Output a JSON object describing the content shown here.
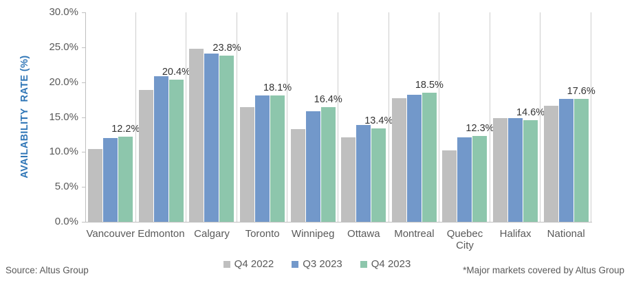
{
  "figure": {
    "source": "Source: Altus Group",
    "footnote": "*Major markets covered by Altus Group"
  },
  "colors": {
    "axis_title_blue": "#2E75B6",
    "axis_text_gray": "#595959",
    "gridline": "#CDCDCD",
    "axis_line": "#BFBFBF"
  },
  "chart_data": {
    "type": "bar",
    "title": "",
    "xlabel": "",
    "ylabel": "AVAILABILITY  RATE (%)",
    "ylim": [
      0,
      30
    ],
    "ytick_step": 5,
    "yticks": [
      "30.0%",
      "25.0%",
      "20.0%",
      "15.0%",
      "10.0%",
      "5.0%",
      "0.0%"
    ],
    "grid": "vertical category separators only",
    "legend_position": "bottom-center",
    "categories": [
      "Vancouver",
      "Edmonton",
      "Calgary",
      "Toronto",
      "Winnipeg",
      "Ottawa",
      "Montreal",
      "Quebec City",
      "Halifax",
      "National"
    ],
    "series": [
      {
        "name": "Q4 2022",
        "color": "#BFBFBF",
        "values": [
          10.4,
          18.9,
          24.8,
          16.4,
          13.3,
          12.1,
          17.7,
          10.2,
          14.9,
          16.6
        ]
      },
      {
        "name": "Q3 2023",
        "color": "#7298CA",
        "values": [
          12.0,
          20.9,
          24.1,
          18.1,
          15.8,
          13.9,
          18.2,
          12.1,
          14.9,
          17.6
        ]
      },
      {
        "name": "Q4 2023",
        "color": "#8DC6AC",
        "values": [
          12.2,
          20.4,
          23.8,
          18.1,
          16.4,
          13.4,
          18.5,
          12.3,
          14.6,
          17.6
        ]
      }
    ],
    "annotations": [
      "12.2%",
      "20.4%",
      "23.8%",
      "18.1%",
      "16.4%",
      "13.4%",
      "18.5%",
      "12.3%",
      "14.6%",
      "17.6%"
    ],
    "annotation_series": "Q4 2023"
  }
}
